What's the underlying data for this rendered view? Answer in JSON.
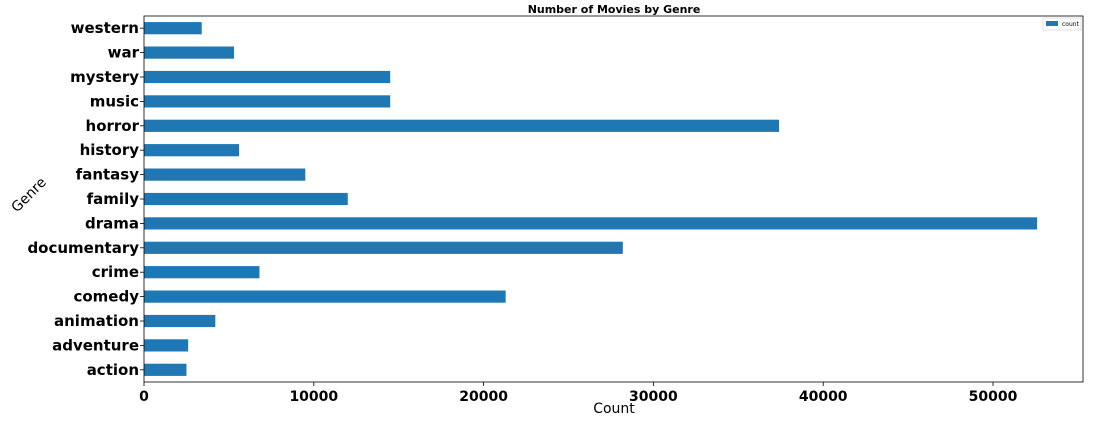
{
  "chart_data": {
    "type": "bar",
    "orientation": "horizontal",
    "title": "Number of Movies by Genre",
    "xlabel": "Count",
    "ylabel": "Genre",
    "categories": [
      "action",
      "adventure",
      "animation",
      "comedy",
      "crime",
      "documentary",
      "drama",
      "family",
      "fantasy",
      "history",
      "horror",
      "music",
      "mystery",
      "war",
      "western"
    ],
    "series": [
      {
        "name": "count",
        "color": "#1f77b4",
        "values": [
          2500,
          2600,
          4200,
          21300,
          6800,
          28200,
          52600,
          12000,
          9500,
          5600,
          37400,
          14500,
          14500,
          5300,
          3400
        ]
      }
    ],
    "xlim": [
      0,
      55300
    ],
    "x_ticks": [
      0,
      10000,
      20000,
      30000,
      40000,
      50000
    ],
    "x_tick_labels": [
      "0",
      "10000",
      "20000",
      "30000",
      "40000",
      "50000"
    ],
    "grid": false,
    "legend_position": "top-right"
  }
}
